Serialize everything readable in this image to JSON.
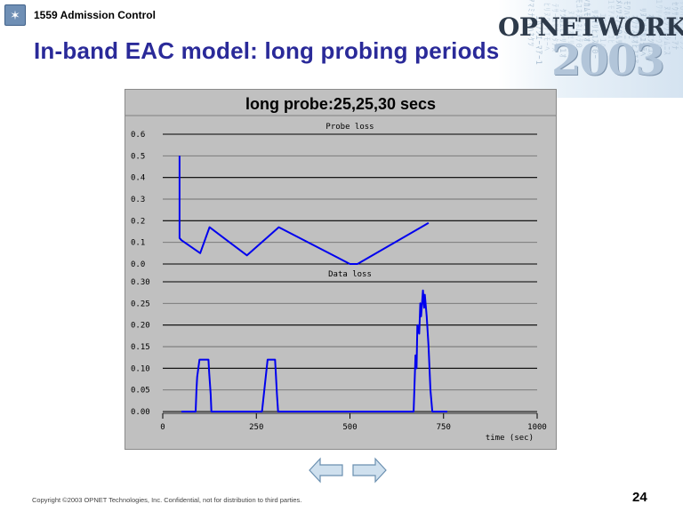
{
  "header": {
    "label": "1559 Admission Control",
    "logo_icon": "starburst-icon",
    "logo_glyph": "✶"
  },
  "title": "In-band EAC model: long probing periods",
  "brand": {
    "name": "OPNETWORK",
    "year": "2003",
    "accent_color": "#b2c5d9"
  },
  "figure": {
    "title": "long probe:25,25,30 secs"
  },
  "chart_data": [
    {
      "type": "line",
      "title": "Probe loss",
      "ylim": [
        0,
        0.6
      ],
      "yticks": [
        "0.6",
        "0.5",
        "0.4",
        "0.3",
        "0.2",
        "0.1",
        "0.0"
      ],
      "xlim": [
        0,
        1000
      ],
      "grid": true,
      "series": [
        {
          "color": "#0000ee",
          "x": [
            45,
            45,
            50,
            100,
            125,
            225,
            310,
            500,
            520,
            710
          ],
          "y": [
            0.5,
            0.12,
            0.11,
            0.05,
            0.17,
            0.04,
            0.17,
            0.0,
            0.0,
            0.19
          ]
        }
      ]
    },
    {
      "type": "line",
      "title": "Data loss",
      "xlabel": "time (sec)",
      "ylim": [
        0,
        0.3
      ],
      "yticks": [
        "0.30",
        "0.25",
        "0.20",
        "0.15",
        "0.10",
        "0.05",
        "0.00"
      ],
      "xlim": [
        0,
        1000
      ],
      "xticks": [
        "0",
        "250",
        "500",
        "750",
        "1000"
      ],
      "grid": true,
      "series": [
        {
          "color": "#0000ee",
          "x": [
            50,
            88,
            90,
            92,
            98,
            122,
            124,
            128,
            130,
            265,
            270,
            275,
            280,
            300,
            302,
            305,
            308,
            670,
            675,
            678,
            680,
            685,
            688,
            690,
            695,
            698,
            700,
            705,
            710,
            715,
            720,
            760
          ],
          "y": [
            0,
            0,
            0.05,
            0.08,
            0.12,
            0.12,
            0.09,
            0.04,
            0,
            0,
            0.04,
            0.08,
            0.12,
            0.12,
            0.09,
            0.04,
            0,
            0,
            0.13,
            0.1,
            0.2,
            0.18,
            0.25,
            0.22,
            0.28,
            0.24,
            0.27,
            0.22,
            0.15,
            0.05,
            0,
            0
          ]
        }
      ]
    }
  ],
  "navigation": {
    "prev_icon": "left-arrow-icon",
    "next_icon": "right-arrow-icon",
    "arrow_color": "#cfe0ee"
  },
  "footer": {
    "copyright": "Copyright ©2003 OPNET Technologies, Inc.  Confidential, not for distribution to third parties.",
    "page_number": "24"
  }
}
